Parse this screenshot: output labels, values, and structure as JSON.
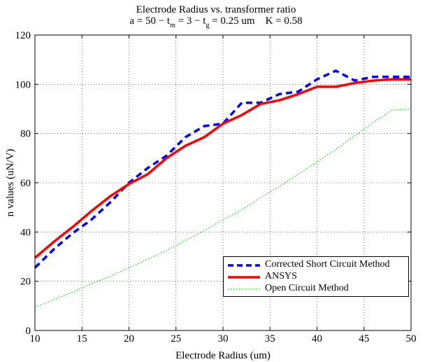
{
  "chart_data": {
    "type": "line",
    "title": "Electrode Radius vs. transformer ratio",
    "subtitle_parts": [
      "a = 50 − t",
      "m",
      " = 3 − t",
      "g",
      " = 0.25 um    K = 0.58"
    ],
    "xlabel": "Electrode Radius (um)",
    "ylabel": "n values (uN/V)",
    "xlim": [
      10,
      50
    ],
    "ylim": [
      0,
      120
    ],
    "xticks": [
      10,
      15,
      20,
      25,
      30,
      35,
      40,
      45,
      50
    ],
    "yticks": [
      0,
      20,
      40,
      60,
      80,
      100,
      120
    ],
    "grid": true,
    "legend_position": "bottom-right",
    "x": [
      10,
      12,
      14,
      16,
      18,
      20,
      22,
      24,
      26,
      28,
      30,
      32,
      34,
      36,
      38,
      40,
      42,
      44,
      46,
      48,
      50
    ],
    "series": [
      {
        "name": "Corrected Short Circuit Method",
        "color": "#0000ff",
        "style": "dashed",
        "values": [
          25.5,
          33,
          39.5,
          45,
          52,
          60,
          66,
          71,
          78.5,
          83,
          84,
          92.5,
          92.5,
          96,
          97,
          102,
          105.5,
          101.5,
          103,
          103,
          103
        ]
      },
      {
        "name": "ANSYS",
        "color": "#ff0000",
        "style": "solid",
        "values": [
          29.5,
          36,
          42,
          48.5,
          54.5,
          59.5,
          63.5,
          70,
          75,
          78.5,
          84,
          87.5,
          92,
          93.5,
          96,
          99,
          99,
          100.5,
          101.5,
          102,
          102
        ]
      },
      {
        "name": "Open Circuit Method",
        "color": "#00cc00",
        "style": "dotted",
        "values": [
          9.5,
          12.5,
          15.5,
          19,
          22,
          25.5,
          29,
          32.5,
          36.5,
          40.5,
          45,
          49,
          54,
          58.5,
          63.5,
          68.5,
          73.5,
          79,
          84.5,
          89.5,
          90
        ]
      }
    ]
  }
}
